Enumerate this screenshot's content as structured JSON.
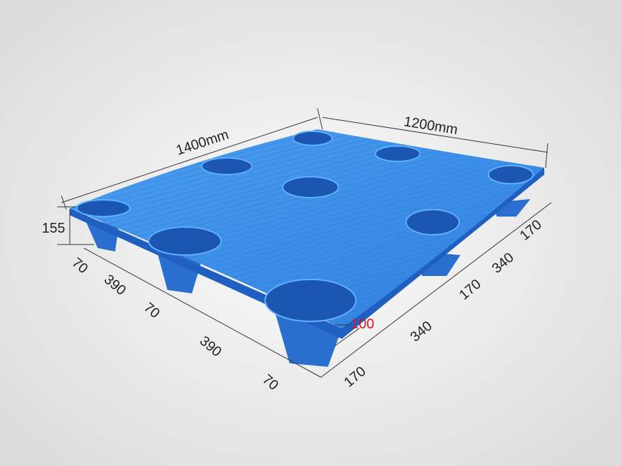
{
  "product": "plastic pallet",
  "colors": {
    "pallet": "#3a8ee6",
    "pallet_dark": "#1f5fbf",
    "background": "#ececec",
    "highlight_dimension": "#e0141e"
  },
  "dimensions": {
    "length": "1400mm",
    "width": "1200mm",
    "height": "155",
    "length_side": [
      "70",
      "390",
      "70",
      "390",
      "70"
    ],
    "width_side": [
      "170",
      "340",
      "170",
      "340",
      "170"
    ],
    "leg_gap": "100"
  }
}
